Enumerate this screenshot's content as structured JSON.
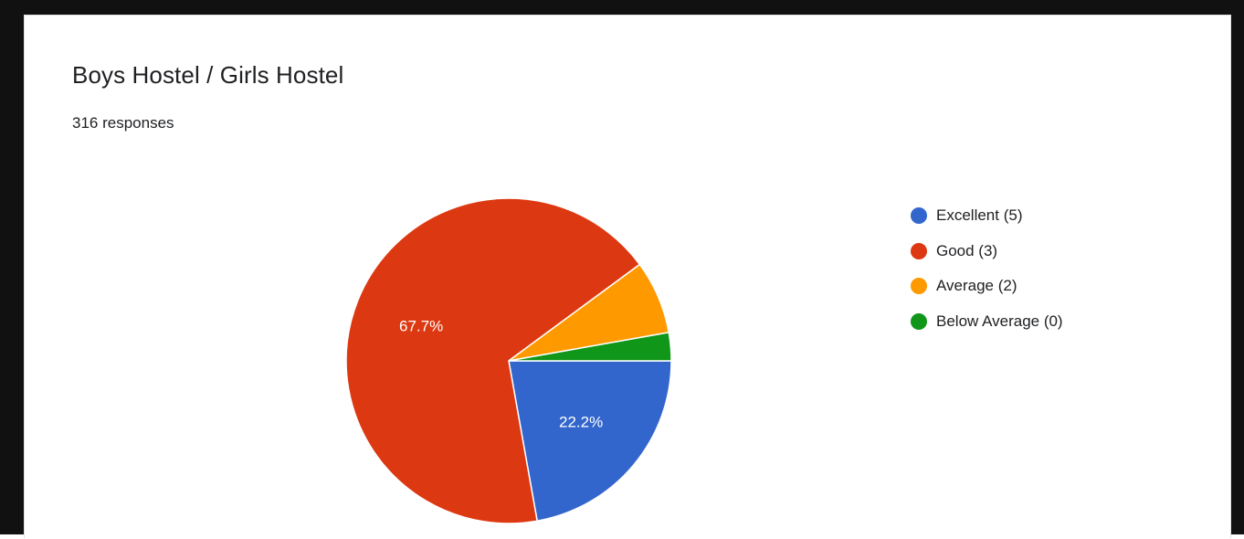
{
  "card": {
    "title": "Boys Hostel / Girls Hostel",
    "subtitle": "316 responses"
  },
  "chart_data": {
    "type": "pie",
    "categories": [
      "Excellent (5)",
      "Good (3)",
      "Average (2)",
      "Below Average (0)"
    ],
    "values": [
      22.2,
      67.7,
      7.3,
      2.8
    ],
    "colors": [
      "#3366cc",
      "#dc3912",
      "#ff9900",
      "#109618"
    ],
    "data_labels": [
      "22.2%",
      "67.7%",
      "",
      ""
    ],
    "legend_position": "right"
  }
}
